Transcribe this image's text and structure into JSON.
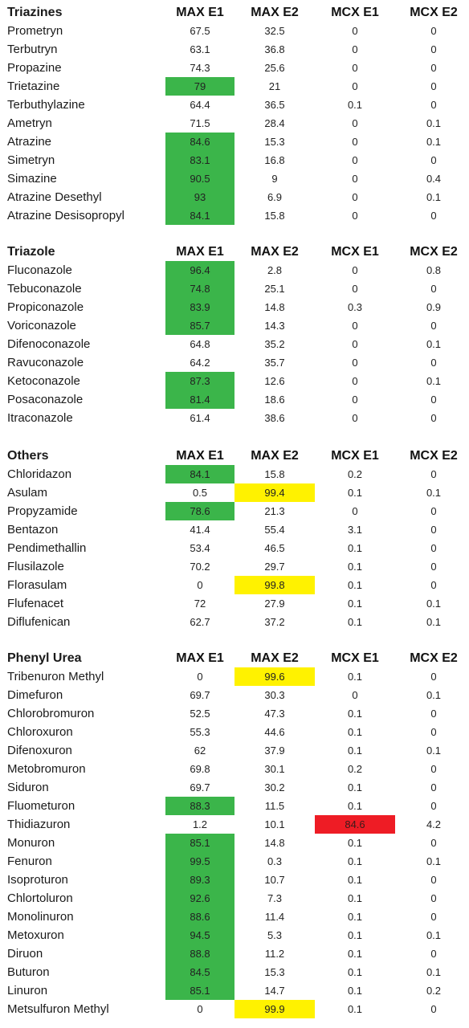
{
  "columns": [
    "MAX E1",
    "MAX E2",
    "MCX E1",
    "MCX E2"
  ],
  "colors": {
    "green": "#3bb54a",
    "yellow": "#fff200",
    "red": "#ee1c25"
  },
  "sections": [
    {
      "title": "Triazines",
      "rows": [
        {
          "name": "Prometryn",
          "values": [
            "67.5",
            "32.5",
            "0",
            "0"
          ],
          "hl": [
            null,
            null,
            null,
            null
          ]
        },
        {
          "name": "Terbutryn",
          "values": [
            "63.1",
            "36.8",
            "0",
            "0"
          ],
          "hl": [
            null,
            null,
            null,
            null
          ]
        },
        {
          "name": "Propazine",
          "values": [
            "74.3",
            "25.6",
            "0",
            "0"
          ],
          "hl": [
            null,
            null,
            null,
            null
          ]
        },
        {
          "name": "Trietazine",
          "values": [
            "79",
            "21",
            "0",
            "0"
          ],
          "hl": [
            "green",
            null,
            null,
            null
          ]
        },
        {
          "name": "Terbuthylazine",
          "values": [
            "64.4",
            "36.5",
            "0.1",
            "0"
          ],
          "hl": [
            null,
            null,
            null,
            null
          ]
        },
        {
          "name": "Ametryn",
          "values": [
            "71.5",
            "28.4",
            "0",
            "0.1"
          ],
          "hl": [
            null,
            null,
            null,
            null
          ]
        },
        {
          "name": "Atrazine",
          "values": [
            "84.6",
            "15.3",
            "0",
            "0.1"
          ],
          "hl": [
            "green",
            null,
            null,
            null
          ]
        },
        {
          "name": "Simetryn",
          "values": [
            "83.1",
            "16.8",
            "0",
            "0"
          ],
          "hl": [
            "green",
            null,
            null,
            null
          ]
        },
        {
          "name": "Simazine",
          "values": [
            "90.5",
            "9",
            "0",
            "0.4"
          ],
          "hl": [
            "green",
            null,
            null,
            null
          ]
        },
        {
          "name": "Atrazine Desethyl",
          "values": [
            "93",
            "6.9",
            "0",
            "0.1"
          ],
          "hl": [
            "green",
            null,
            null,
            null
          ]
        },
        {
          "name": "Atrazine Desisopropyl",
          "values": [
            "84.1",
            "15.8",
            "0",
            "0"
          ],
          "hl": [
            "green",
            null,
            null,
            null
          ]
        }
      ]
    },
    {
      "title": "Triazole",
      "rows": [
        {
          "name": "Fluconazole",
          "values": [
            "96.4",
            "2.8",
            "0",
            "0.8"
          ],
          "hl": [
            "green",
            null,
            null,
            null
          ]
        },
        {
          "name": "Tebuconazole",
          "values": [
            "74.8",
            "25.1",
            "0",
            "0"
          ],
          "hl": [
            "green",
            null,
            null,
            null
          ]
        },
        {
          "name": "Propiconazole",
          "values": [
            "83.9",
            "14.8",
            "0.3",
            "0.9"
          ],
          "hl": [
            "green",
            null,
            null,
            null
          ]
        },
        {
          "name": "Voriconazole",
          "values": [
            "85.7",
            "14.3",
            "0",
            "0"
          ],
          "hl": [
            "green",
            null,
            null,
            null
          ]
        },
        {
          "name": "Difenoconazole",
          "values": [
            "64.8",
            "35.2",
            "0",
            "0.1"
          ],
          "hl": [
            null,
            null,
            null,
            null
          ]
        },
        {
          "name": "Ravuconazole",
          "values": [
            "64.2",
            "35.7",
            "0",
            "0"
          ],
          "hl": [
            null,
            null,
            null,
            null
          ]
        },
        {
          "name": "Ketoconazole",
          "values": [
            "87.3",
            "12.6",
            "0",
            "0.1"
          ],
          "hl": [
            "green",
            null,
            null,
            null
          ]
        },
        {
          "name": "Posaconazole",
          "values": [
            "81.4",
            "18.6",
            "0",
            "0"
          ],
          "hl": [
            "green",
            null,
            null,
            null
          ]
        },
        {
          "name": "Itraconazole",
          "values": [
            "61.4",
            "38.6",
            "0",
            "0"
          ],
          "hl": [
            null,
            null,
            null,
            null
          ]
        }
      ]
    },
    {
      "title": "Others",
      "rows": [
        {
          "name": "Chloridazon",
          "values": [
            "84.1",
            "15.8",
            "0.2",
            "0"
          ],
          "hl": [
            "green",
            null,
            null,
            null
          ]
        },
        {
          "name": "Asulam",
          "values": [
            "0.5",
            "99.4",
            "0.1",
            "0.1"
          ],
          "hl": [
            null,
            "yellow",
            null,
            null
          ]
        },
        {
          "name": "Propyzamide",
          "values": [
            "78.6",
            "21.3",
            "0",
            "0"
          ],
          "hl": [
            "green",
            null,
            null,
            null
          ]
        },
        {
          "name": "Bentazon",
          "values": [
            "41.4",
            "55.4",
            "3.1",
            "0"
          ],
          "hl": [
            null,
            null,
            null,
            null
          ]
        },
        {
          "name": "Pendimethallin",
          "values": [
            "53.4",
            "46.5",
            "0.1",
            "0"
          ],
          "hl": [
            null,
            null,
            null,
            null
          ]
        },
        {
          "name": "Flusilazole",
          "values": [
            "70.2",
            "29.7",
            "0.1",
            "0"
          ],
          "hl": [
            null,
            null,
            null,
            null
          ]
        },
        {
          "name": "Florasulam",
          "values": [
            "0",
            "99.8",
            "0.1",
            "0"
          ],
          "hl": [
            null,
            "yellow",
            null,
            null
          ]
        },
        {
          "name": "Flufenacet",
          "values": [
            "72",
            "27.9",
            "0.1",
            "0.1"
          ],
          "hl": [
            null,
            null,
            null,
            null
          ]
        },
        {
          "name": "Diflufenican",
          "values": [
            "62.7",
            "37.2",
            "0.1",
            "0.1"
          ],
          "hl": [
            null,
            null,
            null,
            null
          ]
        }
      ]
    },
    {
      "title": "Phenyl Urea",
      "rows": [
        {
          "name": "Tribenuron Methyl",
          "values": [
            "0",
            "99.6",
            "0.1",
            "0"
          ],
          "hl": [
            null,
            "yellow",
            null,
            null
          ]
        },
        {
          "name": "Dimefuron",
          "values": [
            "69.7",
            "30.3",
            "0",
            "0.1"
          ],
          "hl": [
            null,
            null,
            null,
            null
          ]
        },
        {
          "name": "Chlorobromuron",
          "values": [
            "52.5",
            "47.3",
            "0.1",
            "0"
          ],
          "hl": [
            null,
            null,
            null,
            null
          ]
        },
        {
          "name": "Chloroxuron",
          "values": [
            "55.3",
            "44.6",
            "0.1",
            "0"
          ],
          "hl": [
            null,
            null,
            null,
            null
          ]
        },
        {
          "name": "Difenoxuron",
          "values": [
            "62",
            "37.9",
            "0.1",
            "0.1"
          ],
          "hl": [
            null,
            null,
            null,
            null
          ]
        },
        {
          "name": "Metobromuron",
          "values": [
            "69.8",
            "30.1",
            "0.2",
            "0"
          ],
          "hl": [
            null,
            null,
            null,
            null
          ]
        },
        {
          "name": "Siduron",
          "values": [
            "69.7",
            "30.2",
            "0.1",
            "0"
          ],
          "hl": [
            null,
            null,
            null,
            null
          ]
        },
        {
          "name": "Fluometuron",
          "values": [
            "88.3",
            "11.5",
            "0.1",
            "0"
          ],
          "hl": [
            "green",
            null,
            null,
            null
          ]
        },
        {
          "name": "Thidiazuron",
          "values": [
            "1.2",
            "10.1",
            "84.6",
            "4.2"
          ],
          "hl": [
            null,
            null,
            "red",
            null
          ]
        },
        {
          "name": "Monuron",
          "values": [
            "85.1",
            "14.8",
            "0.1",
            "0"
          ],
          "hl": [
            "green",
            null,
            null,
            null
          ]
        },
        {
          "name": "Fenuron",
          "values": [
            "99.5",
            "0.3",
            "0.1",
            "0.1"
          ],
          "hl": [
            "green",
            null,
            null,
            null
          ]
        },
        {
          "name": "Isoproturon",
          "values": [
            "89.3",
            "10.7",
            "0.1",
            "0"
          ],
          "hl": [
            "green",
            null,
            null,
            null
          ]
        },
        {
          "name": "Chlortoluron",
          "values": [
            "92.6",
            "7.3",
            "0.1",
            "0"
          ],
          "hl": [
            "green",
            null,
            null,
            null
          ]
        },
        {
          "name": "Monolinuron",
          "values": [
            "88.6",
            "11.4",
            "0.1",
            "0"
          ],
          "hl": [
            "green",
            null,
            null,
            null
          ]
        },
        {
          "name": "Metoxuron",
          "values": [
            "94.5",
            "5.3",
            "0.1",
            "0.1"
          ],
          "hl": [
            "green",
            null,
            null,
            null
          ]
        },
        {
          "name": "Diruon",
          "values": [
            "88.8",
            "11.2",
            "0.1",
            "0"
          ],
          "hl": [
            "green",
            null,
            null,
            null
          ]
        },
        {
          "name": "Buturon",
          "values": [
            "84.5",
            "15.3",
            "0.1",
            "0.1"
          ],
          "hl": [
            "green",
            null,
            null,
            null
          ]
        },
        {
          "name": "Linuron",
          "values": [
            "85.1",
            "14.7",
            "0.1",
            "0.2"
          ],
          "hl": [
            "green",
            null,
            null,
            null
          ]
        },
        {
          "name": "Metsulfuron Methyl",
          "values": [
            "0",
            "99.9",
            "0.1",
            "0"
          ],
          "hl": [
            null,
            "yellow",
            null,
            null
          ]
        }
      ]
    }
  ]
}
